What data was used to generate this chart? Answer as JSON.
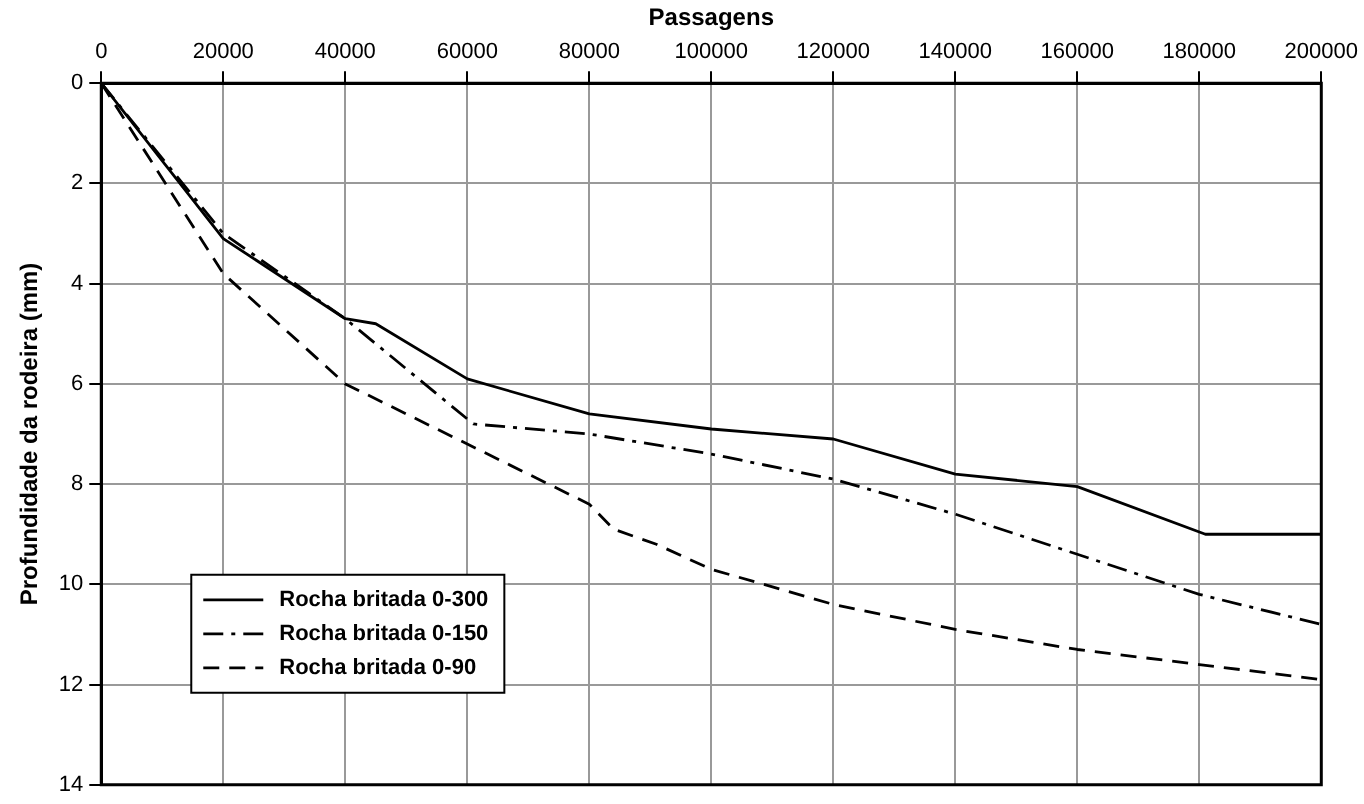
{
  "chart_data": {
    "type": "line",
    "xlabel": "Passagens",
    "ylabel": "Profundidade da rodeira (mm)",
    "xlim": [
      0,
      200000
    ],
    "xticks": [
      0,
      20000,
      40000,
      60000,
      80000,
      100000,
      120000,
      140000,
      160000,
      180000,
      200000
    ],
    "ylim": [
      14,
      0
    ],
    "yticks": [
      0,
      2,
      4,
      6,
      8,
      10,
      12,
      14
    ],
    "grid": true,
    "legend": "bottom left",
    "marker": "none",
    "series": [
      {
        "name": "Rocha britada 0-300",
        "color": "#000000",
        "line_style": "solid",
        "x": [
          0,
          20000,
          40000,
          45000,
          60000,
          80000,
          100000,
          120000,
          140000,
          160000,
          181000,
          200000
        ],
        "values": [
          0,
          3.1,
          4.7,
          4.8,
          5.9,
          6.6,
          6.9,
          7.1,
          7.8,
          8.05,
          9.0,
          9.0
        ]
      },
      {
        "name": "Rocha britada 0-150",
        "color": "#000000",
        "line_style": "dashdot",
        "x": [
          0,
          20000,
          40000,
          61000,
          80000,
          100000,
          120000,
          140000,
          160000,
          180000,
          200000
        ],
        "values": [
          0,
          3.0,
          4.7,
          6.8,
          7.0,
          7.4,
          7.9,
          8.6,
          9.4,
          10.2,
          10.8
        ]
      },
      {
        "name": "Rocha britada 0-90",
        "color": "#000000",
        "line_style": "dashed",
        "x": [
          0,
          20000,
          40000,
          60000,
          80000,
          84000,
          91000,
          100000,
          120000,
          140000,
          160000,
          180000,
          200000
        ],
        "values": [
          0,
          3.8,
          6.0,
          7.2,
          8.4,
          8.9,
          9.2,
          9.7,
          10.4,
          10.9,
          11.3,
          11.6,
          11.9
        ]
      }
    ]
  }
}
